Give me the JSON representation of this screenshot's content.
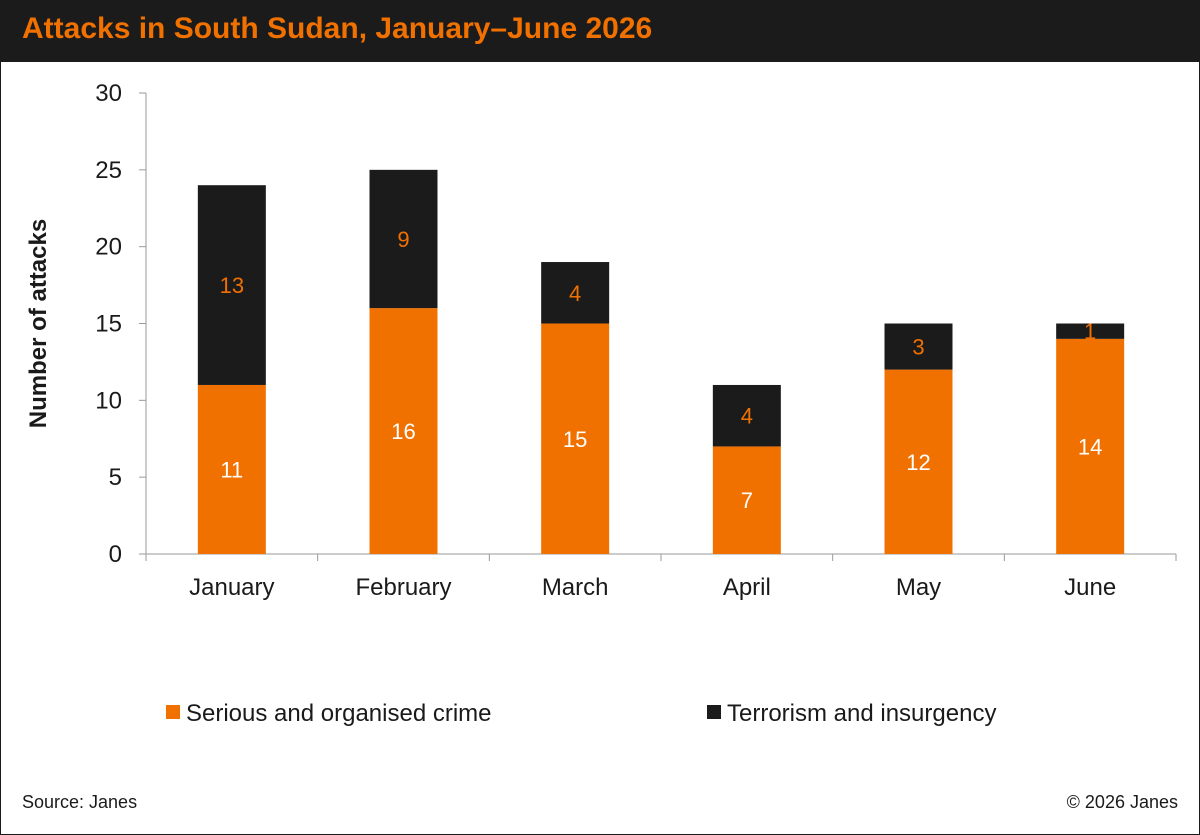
{
  "title": "Attacks in South Sudan, January–June 2026",
  "footer": {
    "source": "Source: Janes",
    "copyright": "© 2026 Janes"
  },
  "colors": {
    "title_bar": "#1b1b1b",
    "title_text": "#f07000",
    "serious_crime": "#f07000",
    "terrorism": "#1b1b1b",
    "label_on_orange": "#ffffff",
    "label_on_black": "#f07000"
  },
  "chart_data": {
    "type": "bar",
    "stacked": true,
    "categories": [
      "January",
      "February",
      "March",
      "April",
      "May",
      "June"
    ],
    "series": [
      {
        "name": "Serious and organised crime",
        "color": "#f07000",
        "values": [
          11,
          16,
          15,
          7,
          12,
          14
        ]
      },
      {
        "name": "Terrorism and insurgency",
        "color": "#1b1b1b",
        "values": [
          13,
          9,
          4,
          4,
          3,
          1
        ]
      }
    ],
    "xlabel": "",
    "ylabel": "Number of attacks",
    "ylim": [
      0,
      30
    ],
    "yticks": [
      0,
      5,
      10,
      15,
      20,
      25,
      30
    ],
    "grid": false,
    "legend_position": "bottom"
  }
}
